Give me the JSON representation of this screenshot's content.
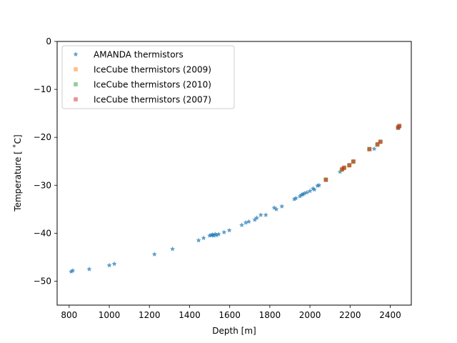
{
  "chart_data": {
    "type": "scatter",
    "title": "",
    "xlabel": "Depth [m]",
    "ylabel": "Temperature [$^\\circ$C]",
    "ylabel_display": "Temperature [ ˚C]",
    "xlim": [
      740,
      2505
    ],
    "ylim": [
      -55,
      0
    ],
    "xticks": [
      800,
      1000,
      1200,
      1400,
      1600,
      1800,
      2000,
      2200,
      2400
    ],
    "yticks": [
      0,
      -10,
      -20,
      -30,
      -40,
      -50
    ],
    "ytick_labels": [
      "0",
      "−10",
      "−20",
      "−30",
      "−40",
      "−50"
    ],
    "grid": false,
    "legend_position": "upper-left",
    "series": [
      {
        "name": "AMANDA thermistors",
        "marker": "star",
        "color": "#1f77b4",
        "points": [
          [
            810,
            -48.0
          ],
          [
            818,
            -47.8
          ],
          [
            900,
            -47.5
          ],
          [
            1000,
            -46.7
          ],
          [
            1025,
            -46.4
          ],
          [
            1225,
            -44.4
          ],
          [
            1315,
            -43.3
          ],
          [
            1445,
            -41.5
          ],
          [
            1470,
            -41.0
          ],
          [
            1500,
            -40.5
          ],
          [
            1508,
            -40.4
          ],
          [
            1515,
            -40.3
          ],
          [
            1520,
            -40.5
          ],
          [
            1528,
            -40.2
          ],
          [
            1535,
            -40.4
          ],
          [
            1545,
            -40.2
          ],
          [
            1572,
            -39.8
          ],
          [
            1598,
            -39.4
          ],
          [
            1660,
            -38.3
          ],
          [
            1680,
            -37.8
          ],
          [
            1695,
            -37.6
          ],
          [
            1725,
            -37.2
          ],
          [
            1735,
            -36.8
          ],
          [
            1755,
            -36.2
          ],
          [
            1780,
            -36.2
          ],
          [
            1822,
            -34.7
          ],
          [
            1832,
            -35.0
          ],
          [
            1860,
            -34.4
          ],
          [
            1922,
            -32.9
          ],
          [
            1930,
            -32.7
          ],
          [
            1950,
            -32.3
          ],
          [
            1958,
            -32.0
          ],
          [
            1965,
            -31.9
          ],
          [
            1972,
            -31.7
          ],
          [
            1985,
            -31.5
          ],
          [
            2000,
            -31.2
          ],
          [
            2015,
            -30.7
          ],
          [
            2022,
            -30.9
          ],
          [
            2038,
            -30.1
          ],
          [
            2045,
            -30.0
          ],
          [
            2150,
            -27.2
          ],
          [
            2320,
            -22.4
          ],
          [
            2440,
            -18.1
          ]
        ]
      },
      {
        "name": "IceCube thermistors (2009)",
        "marker": "square",
        "color": "#ff7f0e",
        "points": [
          [
            2078,
            -28.8
          ],
          [
            2158,
            -26.8
          ],
          [
            2168,
            -26.4
          ],
          [
            2195,
            -25.9
          ],
          [
            2215,
            -25.1
          ],
          [
            2295,
            -22.5
          ],
          [
            2335,
            -21.6
          ],
          [
            2350,
            -21.0
          ],
          [
            2438,
            -17.9
          ],
          [
            2444,
            -17.6
          ]
        ]
      },
      {
        "name": "IceCube thermistors (2010)",
        "marker": "square",
        "color": "#2ca02c",
        "points": [
          [
            2079,
            -28.8
          ],
          [
            2160,
            -26.7
          ],
          [
            2170,
            -26.4
          ],
          [
            2196,
            -25.8
          ],
          [
            2216,
            -25.1
          ],
          [
            2296,
            -22.4
          ],
          [
            2336,
            -21.5
          ],
          [
            2351,
            -20.9
          ],
          [
            2439,
            -17.9
          ],
          [
            2445,
            -17.7
          ]
        ]
      },
      {
        "name": "IceCube thermistors (2007)",
        "marker": "square",
        "color": "#d62728",
        "points": [
          [
            2080,
            -28.9
          ],
          [
            2161,
            -26.6
          ],
          [
            2171,
            -26.3
          ],
          [
            2197,
            -25.8
          ],
          [
            2217,
            -25.0
          ],
          [
            2297,
            -22.5
          ],
          [
            2337,
            -21.4
          ],
          [
            2352,
            -20.9
          ],
          [
            2440,
            -18.0
          ],
          [
            2446,
            -17.6
          ]
        ]
      }
    ]
  }
}
